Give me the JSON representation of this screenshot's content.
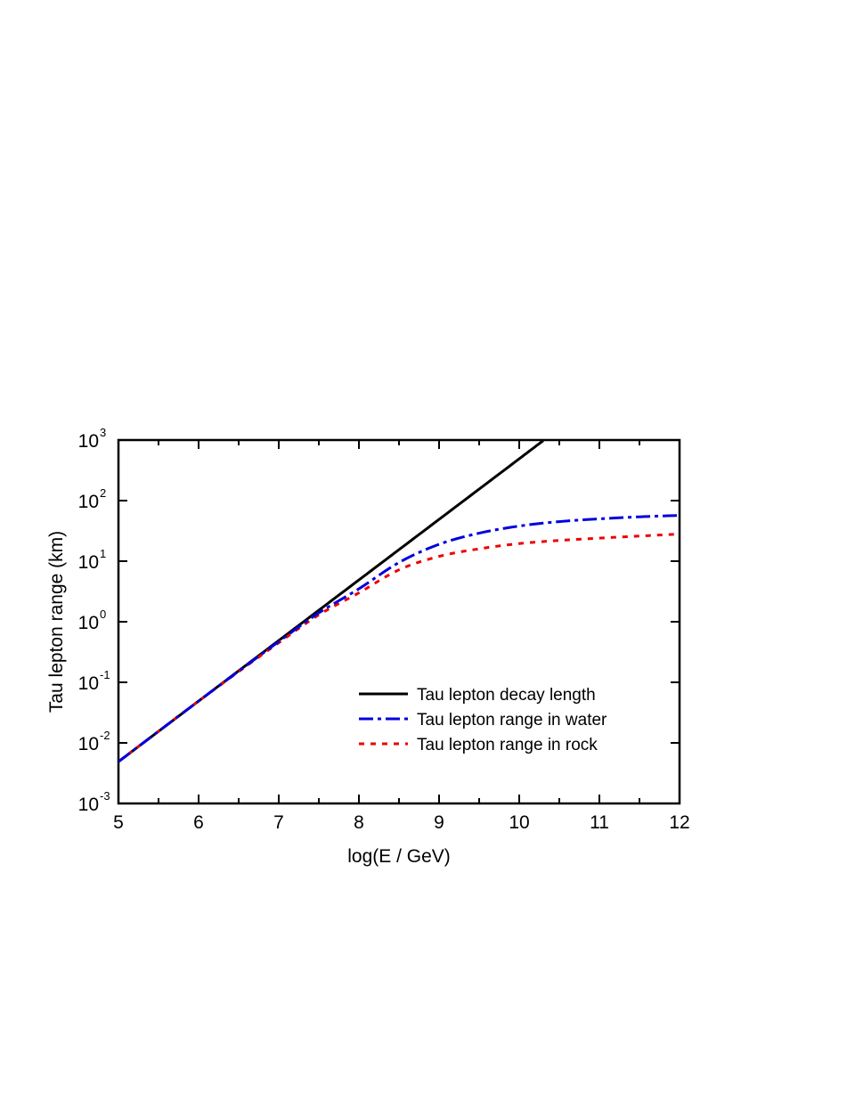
{
  "chart_data": {
    "type": "line",
    "xlabel": "log(E / GeV)",
    "ylabel": "Tau lepton range (km)",
    "xlim": [
      5,
      12
    ],
    "ylim": [
      0.001,
      1000
    ],
    "yscale": "log",
    "x_ticks": [
      "5",
      "6",
      "7",
      "8",
      "9",
      "10",
      "11",
      "12"
    ],
    "y_ticks": [
      {
        "base": "10",
        "exp": "-3"
      },
      {
        "base": "10",
        "exp": "-2"
      },
      {
        "base": "10",
        "exp": "-1"
      },
      {
        "base": "10",
        "exp": "0"
      },
      {
        "base": "10",
        "exp": "1"
      },
      {
        "base": "10",
        "exp": "2"
      },
      {
        "base": "10",
        "exp": "3"
      }
    ],
    "legend_position": "lower-right",
    "grid": false,
    "series": [
      {
        "name": "Tau lepton decay length",
        "color": "#000000",
        "style": "solid",
        "x": [
          5,
          6,
          7,
          8,
          9,
          10,
          10.3
        ],
        "y": [
          0.0049,
          0.049,
          0.49,
          4.9,
          49,
          490,
          980
        ]
      },
      {
        "name": "Tau lepton range in water",
        "color": "#0000dd",
        "style": "dashdot",
        "x": [
          5,
          6,
          7,
          7.5,
          8,
          8.5,
          9,
          9.5,
          10,
          10.5,
          11,
          11.5,
          12
        ],
        "y": [
          0.0049,
          0.049,
          0.47,
          1.4,
          3.5,
          9.5,
          19,
          29,
          38,
          45,
          50,
          54,
          57
        ]
      },
      {
        "name": "Tau lepton range in rock",
        "color": "#ee0000",
        "style": "dotted",
        "x": [
          5,
          6,
          7,
          7.5,
          8,
          8.5,
          9,
          9.5,
          10,
          10.5,
          11,
          11.5,
          12
        ],
        "y": [
          0.0049,
          0.049,
          0.45,
          1.3,
          3.0,
          7.2,
          12,
          16,
          19.5,
          22,
          24,
          26,
          28
        ]
      }
    ]
  }
}
